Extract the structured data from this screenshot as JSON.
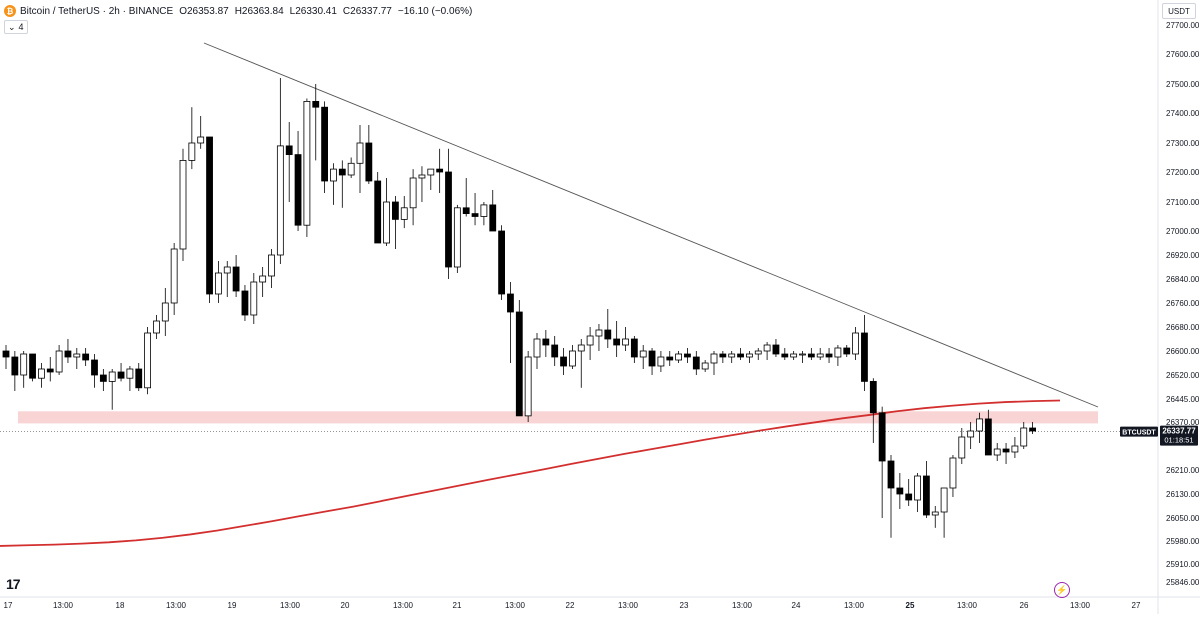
{
  "header": {
    "symbol": "Bitcoin / TetherUS · 2h · BINANCE",
    "open": "O26353.87",
    "high": "H26363.84",
    "low": "L26330.41",
    "close": "C26337.77",
    "change": "−16.10 (−0.06%)",
    "indicators_count": "4",
    "currency": "USDT"
  },
  "price_axis": {
    "labels": [
      "27700.00",
      "27600.00",
      "27500.00",
      "27400.00",
      "27300.00",
      "27200.00",
      "27100.00",
      "27000.00",
      "26920.00",
      "26840.00",
      "26760.00",
      "26680.00",
      "26600.00",
      "26520.00",
      "26445.00",
      "26370.00",
      "26210.00",
      "26130.00",
      "26050.00",
      "25980.00",
      "25910.00",
      "25846.00"
    ]
  },
  "time_axis": {
    "labels": [
      "17",
      "13:00",
      "18",
      "13:00",
      "19",
      "13:00",
      "20",
      "13:00",
      "21",
      "13:00",
      "22",
      "13:00",
      "23",
      "13:00",
      "24",
      "13:00",
      "25",
      "13:00",
      "26",
      "13:00",
      "27"
    ]
  },
  "price_tag": {
    "symbol": "BTCUSDT",
    "price": "26337.77",
    "countdown": "01:18:51"
  },
  "colors": {
    "up_body": "#ffffff",
    "down_body": "#000000",
    "outline": "#000000",
    "ma_line": "#d32f2f",
    "zone_fill": "#f8d4d4",
    "trendline": "#555555",
    "axis_text": "#131722",
    "last_price_line": "#555555"
  },
  "icons": {
    "logo": "bitcoin-icon",
    "brand": "tradingview-logo",
    "bolt": "lightning-icon"
  },
  "chart_data": {
    "type": "candlestick",
    "timeframe": "2h",
    "x_start": "17",
    "ylim": [
      25846,
      27700
    ],
    "candles": [
      [
        26600,
        26620,
        26540,
        26580
      ],
      [
        26580,
        26600,
        26470,
        26520
      ],
      [
        26520,
        26600,
        26480,
        26590
      ],
      [
        26590,
        26590,
        26500,
        26510
      ],
      [
        26510,
        26560,
        26480,
        26540
      ],
      [
        26540,
        26580,
        26500,
        26530
      ],
      [
        26530,
        26620,
        26520,
        26600
      ],
      [
        26600,
        26640,
        26560,
        26580
      ],
      [
        26580,
        26610,
        26540,
        26590
      ],
      [
        26590,
        26610,
        26550,
        26570
      ],
      [
        26570,
        26590,
        26480,
        26520
      ],
      [
        26520,
        26540,
        26470,
        26500
      ],
      [
        26500,
        26540,
        26410,
        26530
      ],
      [
        26530,
        26560,
        26500,
        26510
      ],
      [
        26510,
        26550,
        26470,
        26540
      ],
      [
        26540,
        26560,
        26470,
        26480
      ],
      [
        26480,
        26680,
        26460,
        26660
      ],
      [
        26660,
        26720,
        26640,
        26700
      ],
      [
        26700,
        26810,
        26650,
        26760
      ],
      [
        26760,
        26960,
        26720,
        26940
      ],
      [
        26940,
        27280,
        26900,
        27240
      ],
      [
        27240,
        27420,
        27210,
        27300
      ],
      [
        27300,
        27390,
        27280,
        27320
      ],
      [
        27320,
        27320,
        26760,
        26790
      ],
      [
        26790,
        26900,
        26760,
        26860
      ],
      [
        26860,
        26900,
        26780,
        26880
      ],
      [
        26880,
        26920,
        26780,
        26800
      ],
      [
        26800,
        26820,
        26700,
        26720
      ],
      [
        26720,
        26860,
        26690,
        26830
      ],
      [
        26830,
        26880,
        26780,
        26850
      ],
      [
        26850,
        26940,
        26810,
        26920
      ],
      [
        26920,
        27520,
        26890,
        27290
      ],
      [
        27290,
        27370,
        27100,
        27260
      ],
      [
        27260,
        27340,
        27000,
        27020
      ],
      [
        27020,
        27450,
        26980,
        27440
      ],
      [
        27440,
        27500,
        27240,
        27420
      ],
      [
        27420,
        27440,
        27130,
        27170
      ],
      [
        27170,
        27230,
        27090,
        27210
      ],
      [
        27210,
        27240,
        27080,
        27190
      ],
      [
        27190,
        27250,
        27180,
        27230
      ],
      [
        27230,
        27360,
        27130,
        27300
      ],
      [
        27300,
        27360,
        27160,
        27170
      ],
      [
        27170,
        27200,
        26960,
        26960
      ],
      [
        26960,
        27180,
        26950,
        27100
      ],
      [
        27100,
        27120,
        26940,
        27040
      ],
      [
        27040,
        27120,
        27010,
        27080
      ],
      [
        27080,
        27210,
        27020,
        27180
      ],
      [
        27180,
        27220,
        27100,
        27190
      ],
      [
        27190,
        27200,
        27140,
        27210
      ],
      [
        27210,
        27280,
        27130,
        27200
      ],
      [
        27200,
        27280,
        26840,
        26880
      ],
      [
        26880,
        27090,
        26860,
        27080
      ],
      [
        27080,
        27180,
        27050,
        27060
      ],
      [
        27060,
        27130,
        27020,
        27050
      ],
      [
        27050,
        27100,
        27020,
        27090
      ],
      [
        27090,
        27140,
        27000,
        27000
      ],
      [
        27000,
        27020,
        26770,
        26790
      ],
      [
        26790,
        26830,
        26560,
        26730
      ],
      [
        26730,
        26770,
        26390,
        26390
      ],
      [
        26390,
        26600,
        26370,
        26580
      ],
      [
        26580,
        26660,
        26540,
        26640
      ],
      [
        26640,
        26670,
        26580,
        26620
      ],
      [
        26620,
        26650,
        26550,
        26580
      ],
      [
        26580,
        26610,
        26520,
        26550
      ],
      [
        26550,
        26620,
        26540,
        26600
      ],
      [
        26600,
        26640,
        26480,
        26620
      ],
      [
        26620,
        26680,
        26570,
        26650
      ],
      [
        26650,
        26690,
        26600,
        26670
      ],
      [
        26670,
        26740,
        26610,
        26640
      ],
      [
        26640,
        26700,
        26580,
        26620
      ],
      [
        26620,
        26680,
        26600,
        26640
      ],
      [
        26640,
        26650,
        26560,
        26580
      ],
      [
        26580,
        26620,
        26540,
        26600
      ],
      [
        26600,
        26610,
        26520,
        26550
      ],
      [
        26550,
        26600,
        26530,
        26580
      ],
      [
        26580,
        26600,
        26550,
        26570
      ],
      [
        26570,
        26600,
        26560,
        26590
      ],
      [
        26590,
        26610,
        26560,
        26580
      ],
      [
        26580,
        26600,
        26520,
        26540
      ],
      [
        26540,
        26570,
        26530,
        26560
      ],
      [
        26560,
        26600,
        26520,
        26590
      ],
      [
        26590,
        26600,
        26560,
        26580
      ],
      [
        26580,
        26600,
        26560,
        26590
      ],
      [
        26590,
        26610,
        26570,
        26580
      ],
      [
        26580,
        26600,
        26560,
        26590
      ],
      [
        26590,
        26610,
        26570,
        26600
      ],
      [
        26600,
        26630,
        26570,
        26620
      ],
      [
        26620,
        26640,
        26580,
        26590
      ],
      [
        26590,
        26610,
        26570,
        26580
      ],
      [
        26580,
        26600,
        26570,
        26590
      ],
      [
        26590,
        26600,
        26560,
        26590
      ],
      [
        26590,
        26610,
        26570,
        26580
      ],
      [
        26580,
        26610,
        26570,
        26590
      ],
      [
        26590,
        26610,
        26560,
        26580
      ],
      [
        26580,
        26620,
        26550,
        26610
      ],
      [
        26610,
        26620,
        26580,
        26590
      ],
      [
        26590,
        26680,
        26570,
        26660
      ],
      [
        26660,
        26720,
        26470,
        26500
      ],
      [
        26500,
        26510,
        26300,
        26400
      ],
      [
        26400,
        26420,
        26050,
        26240
      ],
      [
        26240,
        26260,
        25990,
        26150
      ],
      [
        26150,
        26200,
        26080,
        26130
      ],
      [
        26130,
        26180,
        26090,
        26110
      ],
      [
        26110,
        26200,
        26070,
        26190
      ],
      [
        26190,
        26240,
        26050,
        26060
      ],
      [
        26060,
        26090,
        26020,
        26070
      ],
      [
        26070,
        26140,
        25990,
        26150
      ],
      [
        26150,
        26260,
        26120,
        26250
      ],
      [
        26250,
        26350,
        26230,
        26320
      ],
      [
        26320,
        26370,
        26280,
        26340
      ],
      [
        26340,
        26400,
        26300,
        26380
      ],
      [
        26380,
        26410,
        26260,
        26260
      ],
      [
        26260,
        26300,
        26240,
        26280
      ],
      [
        26280,
        26300,
        26230,
        26270
      ],
      [
        26270,
        26320,
        26250,
        26290
      ],
      [
        26290,
        26370,
        26280,
        26350
      ],
      [
        26350,
        26370,
        26330,
        26340
      ]
    ],
    "moving_average": [
      25965,
      25967,
      25969,
      25972,
      25976,
      25982,
      25990,
      26000,
      26012,
      26026,
      26040,
      26056,
      26072,
      26088,
      26106,
      26124,
      26142,
      26160,
      26178,
      26195,
      26212,
      26230,
      26247,
      26264,
      26280,
      26296,
      26312,
      26327,
      26342,
      26356,
      26369,
      26382,
      26393,
      26405,
      26415,
      26423,
      26430,
      26435,
      26438,
      26440
    ],
    "support_zone": [
      26385,
      26405
    ],
    "trendline": {
      "start": [
        10,
        27640
      ],
      "end": [
        125,
        26400
      ]
    },
    "last_price": 26337.77
  }
}
